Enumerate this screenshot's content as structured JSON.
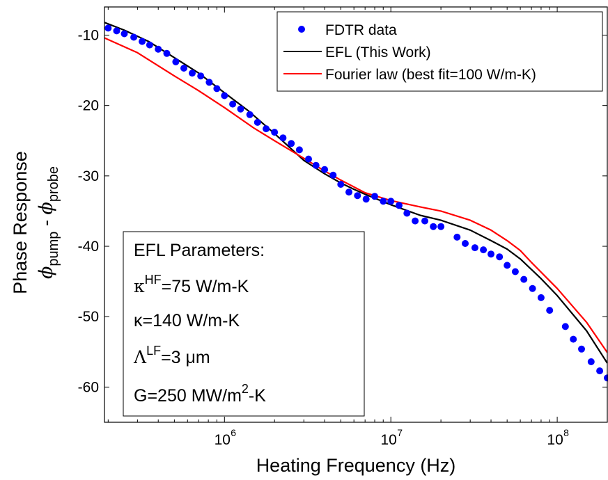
{
  "chart_data": {
    "type": "scatter",
    "xlabel": "Heating Frequency (Hz)",
    "ylabel_main": "Phase Response",
    "ylabel_sub": {
      "phi_1": "ϕ",
      "sub_1": "pump",
      "minus": " - ",
      "phi_2": "ϕ",
      "sub_2": "probe"
    },
    "x_scale": "log",
    "xlim": [
      190000,
      200000000
    ],
    "ylim": [
      -65,
      -6
    ],
    "x_ticks": [
      {
        "value": 1000000,
        "base": "10",
        "exp": "6"
      },
      {
        "value": 10000000,
        "base": "10",
        "exp": "7"
      },
      {
        "value": 100000000,
        "base": "10",
        "exp": "8"
      }
    ],
    "y_ticks": [
      -10,
      -20,
      -30,
      -40,
      -50,
      -60
    ],
    "legend_position": "top-right",
    "series": [
      {
        "name": "FDTR data",
        "kind": "markers",
        "color": "#0000ff",
        "x": [
          200000,
          225000,
          250000,
          285000,
          320000,
          355000,
          400000,
          450000,
          510000,
          570000,
          640000,
          720000,
          810000,
          900000,
          1000000,
          1120000,
          1250000,
          1420000,
          1580000,
          1780000,
          2000000,
          2250000,
          2520000,
          2820000,
          3200000,
          3550000,
          4000000,
          4500000,
          5000000,
          5600000,
          6300000,
          7100000,
          8000000,
          9000000,
          10000000,
          11200000,
          12500000,
          14000000,
          16000000,
          18000000,
          20000000,
          25000000,
          28000000,
          32000000,
          36000000,
          40000000,
          45000000,
          50000000,
          56000000,
          63000000,
          71000000,
          80000000,
          90000000,
          112000000,
          125000000,
          140000000,
          160000000,
          180000000,
          200000000
        ],
        "y": [
          -9.0,
          -9.4,
          -9.8,
          -10.3,
          -10.9,
          -11.4,
          -12.0,
          -12.6,
          -13.8,
          -14.7,
          -15.4,
          -15.8,
          -16.7,
          -17.6,
          -18.6,
          -19.8,
          -20.5,
          -21.3,
          -22.4,
          -23.3,
          -23.8,
          -24.6,
          -25.4,
          -26.3,
          -27.6,
          -28.5,
          -29.1,
          -29.9,
          -31.2,
          -32.3,
          -32.8,
          -33.3,
          -32.9,
          -33.6,
          -33.6,
          -34.2,
          -35.3,
          -36.4,
          -36.4,
          -37.2,
          -37.2,
          -38.7,
          -39.6,
          -40.2,
          -40.5,
          -41.1,
          -41.5,
          -42.7,
          -43.6,
          -44.7,
          -46.0,
          -47.3,
          -49.1,
          -51.4,
          -53.2,
          -54.6,
          -56.4,
          -57.7,
          -58.7
        ]
      },
      {
        "name": "EFL (This Work)",
        "kind": "line",
        "color": "#000000",
        "x": [
          190000,
          250000,
          350000,
          500000,
          700000,
          1000000,
          1400000,
          2000000,
          3000000,
          4000000,
          5000000,
          6000000,
          7000000,
          10000000,
          15000000,
          20000000,
          30000000,
          40000000,
          50000000,
          60000000,
          80000000,
          100000000,
          150000000,
          200000000
        ],
        "y": [
          -8.2,
          -9.3,
          -10.9,
          -13.2,
          -15.4,
          -18.2,
          -20.8,
          -24.0,
          -27.8,
          -29.7,
          -31.0,
          -31.9,
          -32.6,
          -34.1,
          -35.6,
          -36.3,
          -37.7,
          -39.2,
          -40.4,
          -41.8,
          -44.6,
          -47.0,
          -52.0,
          -56.6
        ]
      },
      {
        "name": "Fourier law (best fit=100 W/m-K)",
        "kind": "line",
        "color": "#ff0000",
        "x": [
          190000,
          300000,
          500000,
          700000,
          1000000,
          1500000,
          2000000,
          3000000,
          4000000,
          5000000,
          7000000,
          10000000,
          15000000,
          20000000,
          30000000,
          40000000,
          50000000,
          60000000,
          70000000,
          100000000,
          150000000,
          200000000
        ],
        "y": [
          -10.4,
          -12.5,
          -15.8,
          -17.9,
          -20.3,
          -23.2,
          -25.0,
          -27.5,
          -29.3,
          -30.6,
          -32.4,
          -33.5,
          -34.4,
          -35.0,
          -36.3,
          -37.7,
          -39.2,
          -40.6,
          -42.3,
          -46.0,
          -50.8,
          -55.1
        ]
      }
    ],
    "annotation": {
      "lines": [
        {
          "prefix": "EFL Parameters:",
          "sup": "",
          "suffix": ""
        },
        {
          "prefix": "κ",
          "sup": "HF",
          "suffix": "=75 W/m-K"
        },
        {
          "prefix": "κ=140 W/m-K",
          "sup": "",
          "suffix": ""
        },
        {
          "prefix": "Λ",
          "sup": "LF",
          "suffix": "=3 μm"
        },
        {
          "prefix": "G=250 MW/m",
          "sup": "2",
          "suffix": "-K"
        }
      ]
    }
  }
}
